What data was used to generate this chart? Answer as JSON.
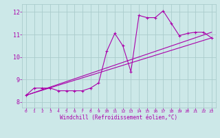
{
  "background_color": "#cce8e8",
  "grid_color": "#aacccc",
  "line_color": "#aa00aa",
  "xlabel": "Windchill (Refroidissement éolien,°C)",
  "xlim": [
    -0.5,
    23.5
  ],
  "ylim": [
    7.75,
    12.35
  ],
  "yticks": [
    8,
    9,
    10,
    11,
    12
  ],
  "xticks": [
    0,
    1,
    2,
    3,
    4,
    5,
    6,
    7,
    8,
    9,
    10,
    11,
    12,
    13,
    14,
    15,
    16,
    17,
    18,
    19,
    20,
    21,
    22,
    23
  ],
  "main_x": [
    0,
    1,
    2,
    3,
    4,
    5,
    6,
    7,
    8,
    9,
    10,
    11,
    12,
    13,
    14,
    15,
    16,
    17,
    18,
    19,
    20,
    21,
    22,
    23
  ],
  "main_y": [
    8.3,
    8.62,
    8.62,
    8.62,
    8.5,
    8.5,
    8.5,
    8.5,
    8.62,
    8.85,
    10.25,
    11.05,
    10.5,
    9.35,
    11.85,
    11.75,
    11.75,
    12.05,
    11.5,
    10.95,
    11.05,
    11.1,
    11.1,
    10.85
  ],
  "line1_x": [
    0,
    23
  ],
  "line1_y": [
    8.3,
    10.85
  ],
  "line2_x": [
    0,
    23
  ],
  "line2_y": [
    8.3,
    11.1
  ],
  "figwidth": 3.2,
  "figheight": 2.0,
  "dpi": 100
}
